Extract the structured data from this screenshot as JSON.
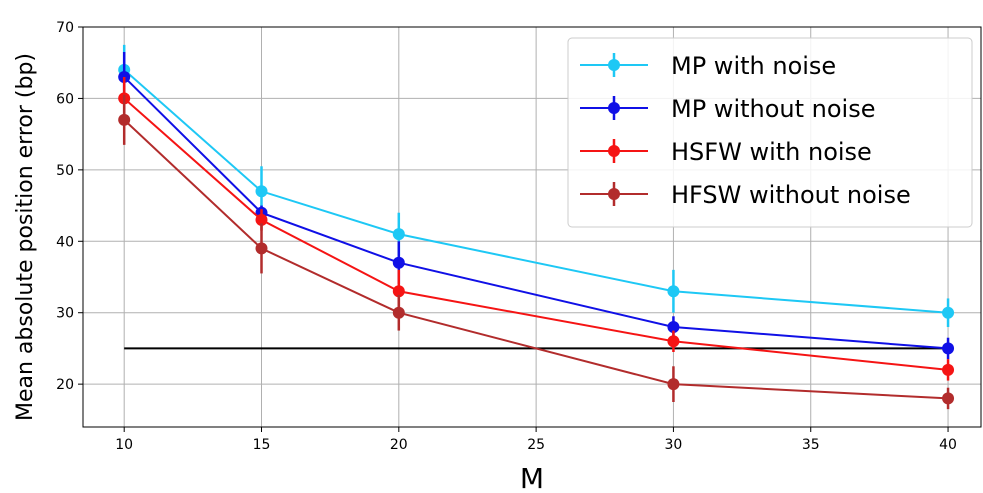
{
  "chart_data": {
    "type": "line",
    "title": "",
    "xlabel": "M",
    "ylabel": "Mean absolute position error (bp)",
    "x": [
      10,
      15,
      20,
      30,
      40
    ],
    "xticks": [
      10,
      15,
      20,
      25,
      30,
      35,
      40
    ],
    "yticks": [
      20,
      30,
      40,
      50,
      60,
      70
    ],
    "xlim": [
      8.5,
      41.2
    ],
    "ylim": [
      14,
      70
    ],
    "grid": true,
    "legend_position": "top-right",
    "series": [
      {
        "name": "MP with noise",
        "color": "#1ec8f5",
        "values": [
          64,
          47,
          41,
          33,
          30
        ],
        "err": [
          3.5,
          3.5,
          3,
          3,
          2
        ]
      },
      {
        "name": "MP without noise",
        "color": "#1010e6",
        "values": [
          63,
          44,
          37,
          28,
          25
        ],
        "err": [
          3.5,
          1,
          3,
          1.5,
          1.5
        ]
      },
      {
        "name": "HSFW with noise",
        "color": "#f51414",
        "values": [
          60,
          43,
          33,
          26,
          22
        ],
        "err": [
          3,
          1.5,
          3,
          1.5,
          1.5
        ]
      },
      {
        "name": "HFSW without noise",
        "color": "#b22c2c",
        "values": [
          57,
          39,
          30,
          20,
          18
        ],
        "err": [
          3.5,
          3.5,
          2.5,
          2.5,
          1.5
        ]
      }
    ],
    "reference_line": {
      "y": 25,
      "x_range": [
        10,
        40
      ],
      "color": "#000000"
    }
  }
}
